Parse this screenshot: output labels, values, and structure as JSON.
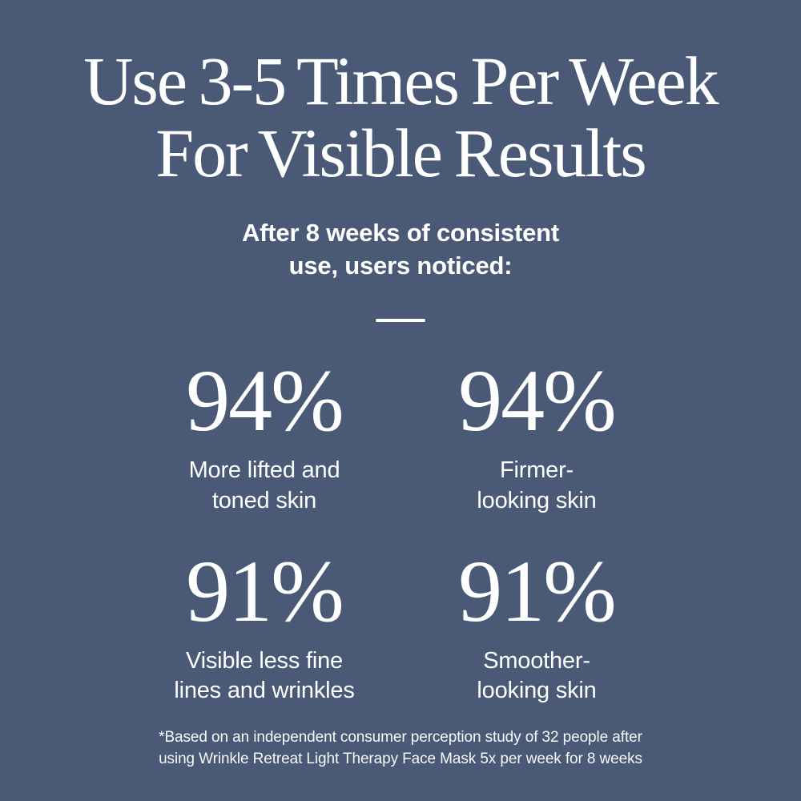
{
  "theme": {
    "background_color": "#4a5a76",
    "text_color": "#ffffff"
  },
  "header": {
    "title": "Use 3-5 Times Per Week\nFor Visible Results",
    "subtitle": "After 8 weeks of consistent\nuse, users noticed:"
  },
  "stats": [
    {
      "value": "94%",
      "label": "More lifted and\ntoned skin"
    },
    {
      "value": "94%",
      "label": "Firmer-\nlooking skin"
    },
    {
      "value": "91%",
      "label": "Visible less fine\nlines and wrinkles"
    },
    {
      "value": "91%",
      "label": "Smoother-\nlooking skin"
    }
  ],
  "footnote": "*Based on an independent consumer perception study of 32 people after\nusing Wrinkle Retreat Light Therapy Face Mask 5x per week for 8 weeks"
}
